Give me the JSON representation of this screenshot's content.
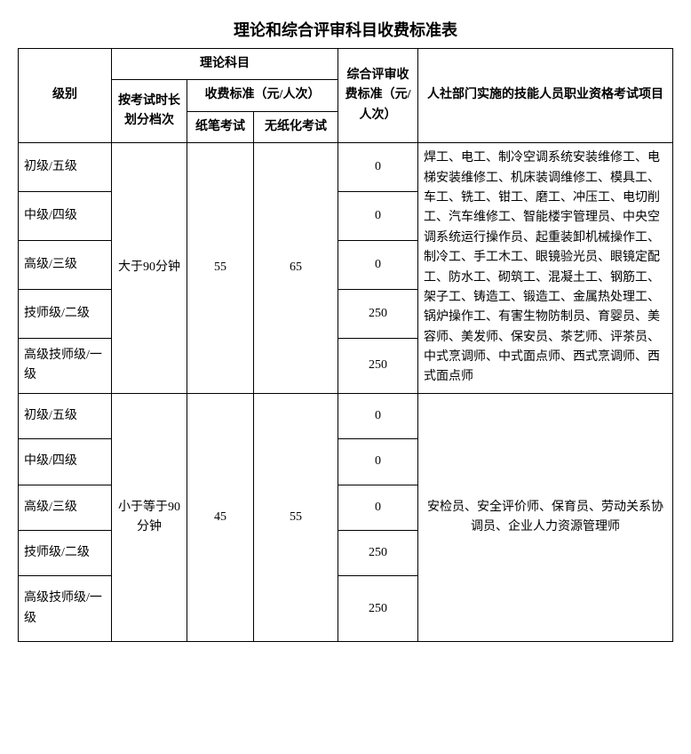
{
  "title": "理论和综合评审科目收费标准表",
  "header": {
    "level": "级别",
    "theory_group": "理论科目",
    "by_duration": "按考试时长划分档次",
    "fee_standard": "收费标准（元/人次）",
    "paper_exam": "纸笔考试",
    "paperless_exam": "无纸化考试",
    "review_fee": "综合评审收费标准（元/人次）",
    "projects": "人社部门实施的技能人员职业资格考试项目"
  },
  "levels": {
    "l5": "初级/五级",
    "l4": "中级/四级",
    "l3": "高级/三级",
    "l2": "技师级/二级",
    "l1": "高级技师级/一级"
  },
  "group1": {
    "duration": "大于90分钟",
    "paper_fee": "55",
    "paperless_fee": "65",
    "review": {
      "l5": "0",
      "l4": "0",
      "l3": "0",
      "l2": "250",
      "l1": "250"
    },
    "projects": "焊工、电工、制冷空调系统安装维修工、电梯安装维修工、机床装调维修工、模具工、车工、铣工、钳工、磨工、冲压工、电切削工、汽车维修工、智能楼宇管理员、中央空调系统运行操作员、起重装卸机械操作工、制冷工、手工木工、眼镜验光员、眼镜定配工、防水工、砌筑工、混凝土工、钢筋工、架子工、铸造工、锻造工、金属热处理工、锅炉操作工、有害生物防制员、育婴员、美容师、美发师、保安员、茶艺师、评茶员、中式烹调师、中式面点师、西式烹调师、西式面点师"
  },
  "group2": {
    "duration": "小于等于90分钟",
    "paper_fee": "45",
    "paperless_fee": "55",
    "review": {
      "l5": "0",
      "l4": "0",
      "l3": "0",
      "l2": "250",
      "l1": "250"
    },
    "projects": "安检员、安全评价师、保育员、劳动关系协调员、企业人力资源管理师"
  }
}
